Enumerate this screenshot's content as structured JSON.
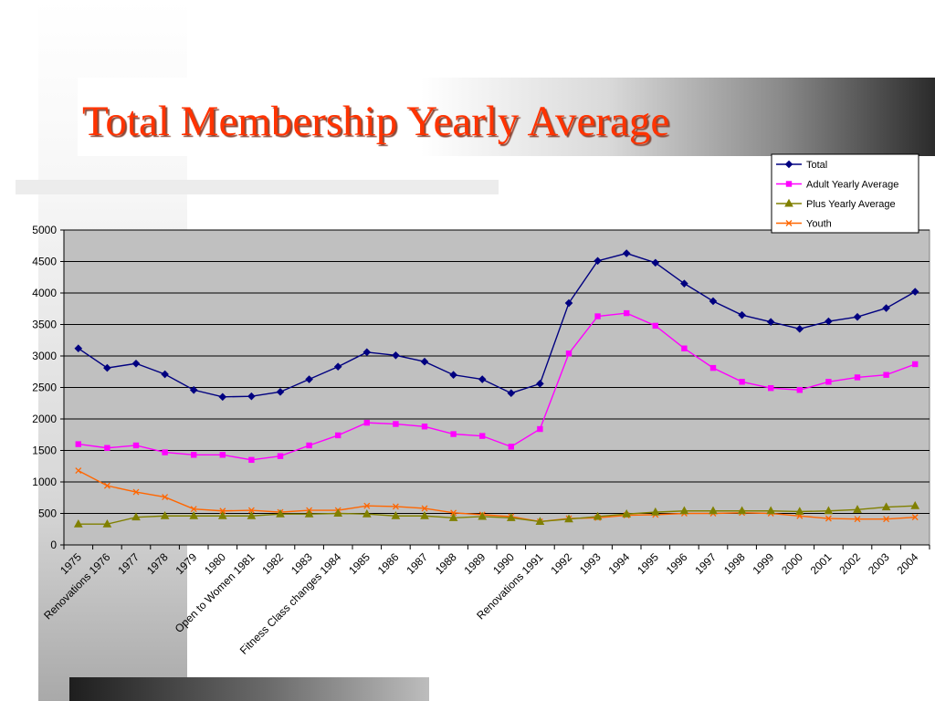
{
  "slide": {
    "title": "Total Membership Yearly Average"
  },
  "chart_data": {
    "type": "line",
    "title": "Total Membership Yearly Average",
    "x": [
      "1975",
      "Renovations 1976",
      "1977",
      "1978",
      "1979",
      "1980",
      "Open to Women 1981",
      "1982",
      "1983",
      "Fitness Class changes 1984",
      "1985",
      "1986",
      "1987",
      "1988",
      "1989",
      "1990",
      "Renovations 1991",
      "1992",
      "1993",
      "1994",
      "1995",
      "1996",
      "1997",
      "1998",
      "1999",
      "2000",
      "2001",
      "2002",
      "2003",
      "2004"
    ],
    "ylim": [
      0,
      5000
    ],
    "yticks": [
      0,
      500,
      1000,
      1500,
      2000,
      2500,
      3000,
      3500,
      4000,
      4500,
      5000
    ],
    "grid": true,
    "legend_position": "top-right",
    "plot_background": "#c0c0c0",
    "series": [
      {
        "name": "Total",
        "color": "#000080",
        "marker": "diamond",
        "values": [
          3120,
          2810,
          2880,
          2710,
          2460,
          2350,
          2360,
          2430,
          2630,
          2830,
          3060,
          3010,
          2910,
          2700,
          2630,
          2410,
          2560,
          3840,
          4510,
          4630,
          4480,
          4150,
          3870,
          3650,
          3540,
          3430,
          3550,
          3620,
          3760,
          4020
        ]
      },
      {
        "name": "Adult Yearly Average",
        "color": "#ff00ff",
        "marker": "square",
        "values": [
          1600,
          1540,
          1580,
          1470,
          1430,
          1430,
          1350,
          1410,
          1580,
          1740,
          1940,
          1920,
          1880,
          1760,
          1730,
          1560,
          1840,
          3040,
          3630,
          3680,
          3480,
          3120,
          2810,
          2590,
          2490,
          2460,
          2590,
          2660,
          2700,
          2870
        ]
      },
      {
        "name": "Plus Yearly Average",
        "color": "#808000",
        "marker": "triangle",
        "values": [
          330,
          330,
          440,
          460,
          460,
          460,
          460,
          490,
          490,
          500,
          490,
          460,
          460,
          430,
          450,
          430,
          370,
          410,
          450,
          490,
          520,
          540,
          540,
          540,
          540,
          530,
          540,
          560,
          600,
          620
        ]
      },
      {
        "name": "Youth",
        "color": "#ff6600",
        "marker": "x",
        "values": [
          1180,
          940,
          840,
          760,
          570,
          540,
          550,
          520,
          550,
          550,
          620,
          610,
          580,
          510,
          480,
          450,
          370,
          420,
          430,
          470,
          480,
          500,
          500,
          510,
          500,
          460,
          420,
          410,
          410,
          440
        ]
      }
    ]
  }
}
